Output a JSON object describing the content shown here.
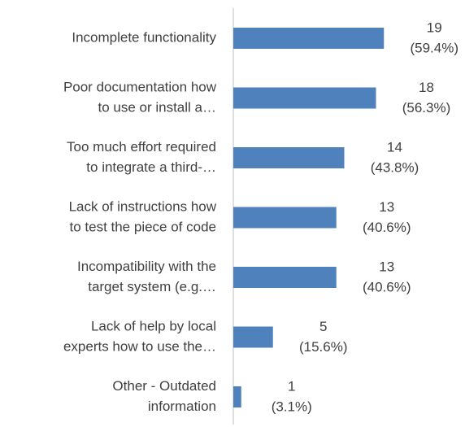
{
  "chart_data": {
    "type": "hbar",
    "categories": [
      [
        "Incomplete functionality"
      ],
      [
        "Poor documentation how",
        "to use or install a…"
      ],
      [
        "Too much effort required",
        "to integrate a third-…"
      ],
      [
        "Lack of instructions how",
        "to test the piece of code"
      ],
      [
        "Incompatibility with the",
        "target system (e.g.…"
      ],
      [
        "Lack of help by local",
        "experts how to use the…"
      ],
      [
        "Other - Outdated",
        "information"
      ]
    ],
    "values": [
      19,
      18,
      14,
      13,
      13,
      5,
      1
    ],
    "percents": [
      59.4,
      56.3,
      43.8,
      40.6,
      40.6,
      15.6,
      3.1
    ],
    "percent_labels": [
      "(59.4%)",
      "(56.3%)",
      "(43.8%)",
      "(40.6%)",
      "(40.6%)",
      "(15.6%)",
      "(3.1%)"
    ],
    "color": "#4f81bd",
    "xlim": [
      0,
      20
    ]
  }
}
